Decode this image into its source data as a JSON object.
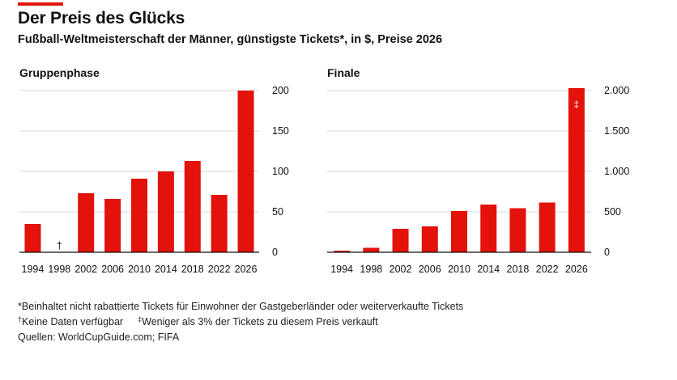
{
  "header": {
    "accent_color": "#e3120b",
    "title": "Der Preis des Glücks",
    "subtitle": "Fußball-Weltmeisterschaft der Männer, günstigste Tickets*, in $, Preise 2026"
  },
  "chart_data": [
    {
      "type": "bar",
      "title": "Gruppenphase",
      "categories": [
        "1994",
        "1998",
        "2002",
        "2006",
        "2010",
        "2014",
        "2018",
        "2022",
        "2026"
      ],
      "values": [
        35,
        null,
        73,
        66,
        91,
        100,
        113,
        71,
        200
      ],
      "ylim": [
        0,
        200
      ],
      "yticks": [
        0,
        50,
        100,
        150,
        200
      ],
      "ytick_labels": [
        "0",
        "50",
        "100",
        "150",
        "200"
      ],
      "y_axis_side": "right",
      "grid": true,
      "bar_color": "#e3120b",
      "annotations": [
        {
          "category": "1998",
          "text": "†"
        }
      ]
    },
    {
      "type": "bar",
      "title": "Finale",
      "categories": [
        "1994",
        "1998",
        "2002",
        "2006",
        "2010",
        "2014",
        "2018",
        "2022",
        "2026"
      ],
      "values": [
        20,
        55,
        290,
        320,
        510,
        590,
        545,
        615,
        2030
      ],
      "ylim": [
        0,
        2000
      ],
      "yticks": [
        0,
        500,
        1000,
        1500,
        2000
      ],
      "ytick_labels": [
        "0",
        "500",
        "1.000",
        "1.500",
        "2.000"
      ],
      "y_axis_side": "right",
      "grid": true,
      "bar_color": "#e3120b",
      "annotations": [
        {
          "category": "2026",
          "text": "‡"
        }
      ]
    }
  ],
  "footnotes": {
    "star_mark": "*",
    "star_text": "Beinhaltet nicht rabattierte Tickets für Einwohner der Gastgeberländer oder weiterverkaufte Tickets",
    "dagger_mark": "†",
    "dagger_text": "Keine Daten verfügbar",
    "ddagger_mark": "‡",
    "ddagger_text": "Weniger als 3% der Tickets zu diesem Preis verkauft",
    "sources": "Quellen: WorldCupGuide.com; FIFA"
  }
}
